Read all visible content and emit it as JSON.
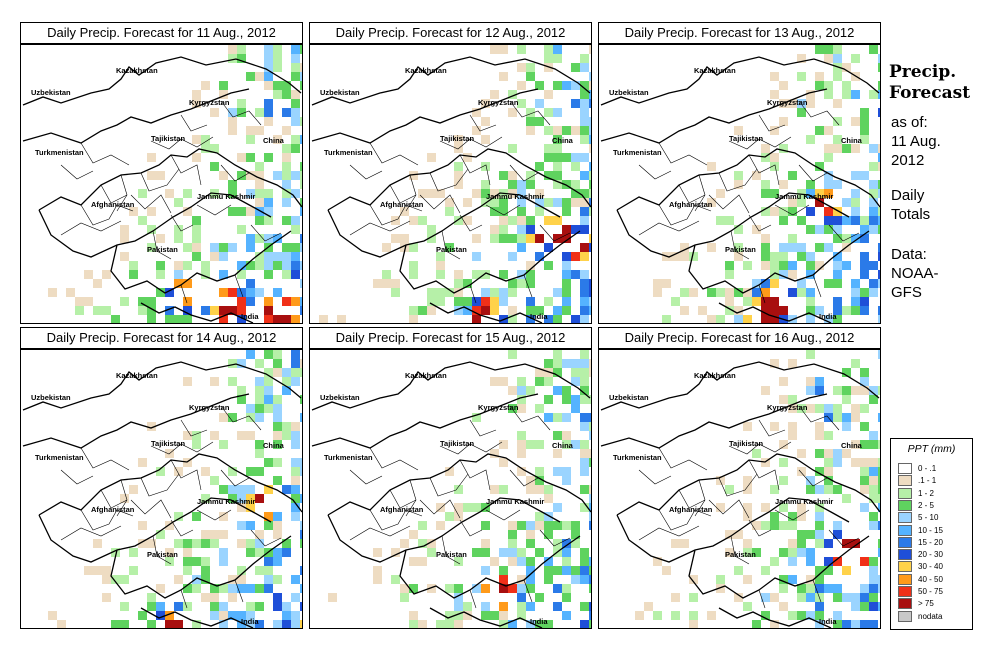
{
  "panels": [
    {
      "title": "Daily Precip. Forecast for  11 Aug., 2012",
      "seed": 11,
      "hot": [
        [
          0.72,
          0.93
        ],
        [
          0.9,
          0.95
        ],
        [
          0.55,
          0.88
        ]
      ]
    },
    {
      "title": "Daily Precip. Forecast for  12 Aug., 2012",
      "seed": 12,
      "hot": [
        [
          0.6,
          0.95
        ],
        [
          0.83,
          0.66
        ],
        [
          0.93,
          0.7
        ]
      ]
    },
    {
      "title": "Daily Precip. Forecast for  13 Aug., 2012",
      "seed": 13,
      "hot": [
        [
          0.57,
          0.96
        ],
        [
          0.8,
          0.55
        ],
        [
          0.62,
          0.9
        ]
      ]
    },
    {
      "title": "Daily Precip. Forecast for  14 Aug., 2012",
      "seed": 14,
      "hot": [
        [
          0.52,
          0.97
        ],
        [
          0.85,
          0.52
        ]
      ]
    },
    {
      "title": "Daily Precip. Forecast for  15 Aug., 2012",
      "seed": 15,
      "hot": [
        [
          0.66,
          0.85
        ]
      ]
    },
    {
      "title": "Daily Precip. Forecast for  16 Aug., 2012",
      "seed": 16,
      "hot": [
        [
          0.86,
          0.72
        ],
        [
          0.9,
          0.68
        ]
      ]
    }
  ],
  "map_labels": {
    "kazakhstan": "Kazakhstan",
    "uzbekistan": "Uzbekistan",
    "kyrgyzstan": "Kyrgyzstan",
    "tajikistan": "Tajikistan",
    "china": "China",
    "turkmenistan": "Turkmenistan",
    "afghanistan": "Afghanistan",
    "jammu_kashmir": "Jammu Kashmir",
    "pakistan": "Pakistan",
    "india": "India"
  },
  "side": {
    "title_line1": "Precip.",
    "title_line2": "Forecast",
    "asof_line1": "as of:",
    "asof_line2": "11 Aug.",
    "asof_line3": "2012",
    "daily_line1": "Daily",
    "daily_line2": "Totals",
    "data_line1": "Data:",
    "data_line2": "NOAA-",
    "data_line3": "GFS"
  },
  "legend": {
    "title": "PPT (mm)",
    "entries": [
      {
        "label": "0 - .1",
        "color": "#ffffff"
      },
      {
        "label": ".1 - 1",
        "color": "#eedcc2"
      },
      {
        "label": "1 - 2",
        "color": "#b6f0a8"
      },
      {
        "label": "2 - 5",
        "color": "#5fd35f"
      },
      {
        "label": "5 - 10",
        "color": "#9ad4ff"
      },
      {
        "label": "10 - 15",
        "color": "#55b3ff"
      },
      {
        "label": "15 - 20",
        "color": "#2b7ae8"
      },
      {
        "label": "20 - 30",
        "color": "#1f4fd8"
      },
      {
        "label": "30 - 40",
        "color": "#ffd24a"
      },
      {
        "label": "40 - 50",
        "color": "#ff9a1a"
      },
      {
        "label": "50 - 75",
        "color": "#f03018"
      },
      {
        "label": "> 75",
        "color": "#a80f0f"
      },
      {
        "label": "nodata",
        "color": "#c8c8c8"
      }
    ]
  }
}
